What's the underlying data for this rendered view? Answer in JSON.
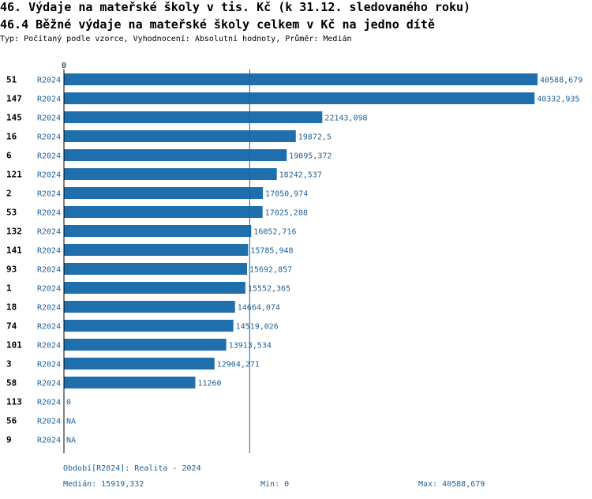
{
  "header": {
    "title": "46. Výdaje na mateřské školy v tis. Kč (k 31.12. sledovaného roku)",
    "subtitle": "46.4 Běžné výdaje na mateřské školy celkem v Kč na jedno dítě",
    "type_line": "Typ: Počítaný podle vzorce, Vyhodnocení: Absolutní hodnoty, Průměr: Medián"
  },
  "chart_data": {
    "type": "bar",
    "orientation": "horizontal",
    "axis_zero_label": "0",
    "xlim": [
      0,
      40588.679
    ],
    "median": 15919.332,
    "colors": {
      "bar": "#1f6fad",
      "label": "#1f5f97",
      "median_line": "#1f5f97",
      "axis": "#000000"
    },
    "rows": [
      {
        "id": "51",
        "period": "R2024",
        "value": 40588.679,
        "label": "40588,679"
      },
      {
        "id": "147",
        "period": "R2024",
        "value": 40332.935,
        "label": "40332,935"
      },
      {
        "id": "145",
        "period": "R2024",
        "value": 22143.098,
        "label": "22143,098"
      },
      {
        "id": "16",
        "period": "R2024",
        "value": 19872.5,
        "label": "19872,5"
      },
      {
        "id": "6",
        "period": "R2024",
        "value": 19095.372,
        "label": "19095,372"
      },
      {
        "id": "121",
        "period": "R2024",
        "value": 18242.537,
        "label": "18242,537"
      },
      {
        "id": "2",
        "period": "R2024",
        "value": 17050.974,
        "label": "17050,974"
      },
      {
        "id": "53",
        "period": "R2024",
        "value": 17025.288,
        "label": "17025,288"
      },
      {
        "id": "132",
        "period": "R2024",
        "value": 16052.716,
        "label": "16052,716"
      },
      {
        "id": "141",
        "period": "R2024",
        "value": 15785.948,
        "label": "15785,948"
      },
      {
        "id": "93",
        "period": "R2024",
        "value": 15692.857,
        "label": "15692,857"
      },
      {
        "id": "1",
        "period": "R2024",
        "value": 15552.365,
        "label": "15552,365"
      },
      {
        "id": "18",
        "period": "R2024",
        "value": 14664.074,
        "label": "14664,074"
      },
      {
        "id": "74",
        "period": "R2024",
        "value": 14519.026,
        "label": "14519,026"
      },
      {
        "id": "101",
        "period": "R2024",
        "value": 13913.534,
        "label": "13913,534"
      },
      {
        "id": "3",
        "period": "R2024",
        "value": 12904.271,
        "label": "12904,271"
      },
      {
        "id": "58",
        "period": "R2024",
        "value": 11260,
        "label": "11260"
      },
      {
        "id": "113",
        "period": "R2024",
        "value": 0,
        "label": "0"
      },
      {
        "id": "56",
        "period": "R2024",
        "value": null,
        "label": "NA"
      },
      {
        "id": "9",
        "period": "R2024",
        "value": null,
        "label": "NA"
      }
    ]
  },
  "footer": {
    "period": "Období[R2024]: Realita - 2024",
    "median": "Medián: 15919,332",
    "min": "Min: 0",
    "max": "Max: 40588,679"
  }
}
